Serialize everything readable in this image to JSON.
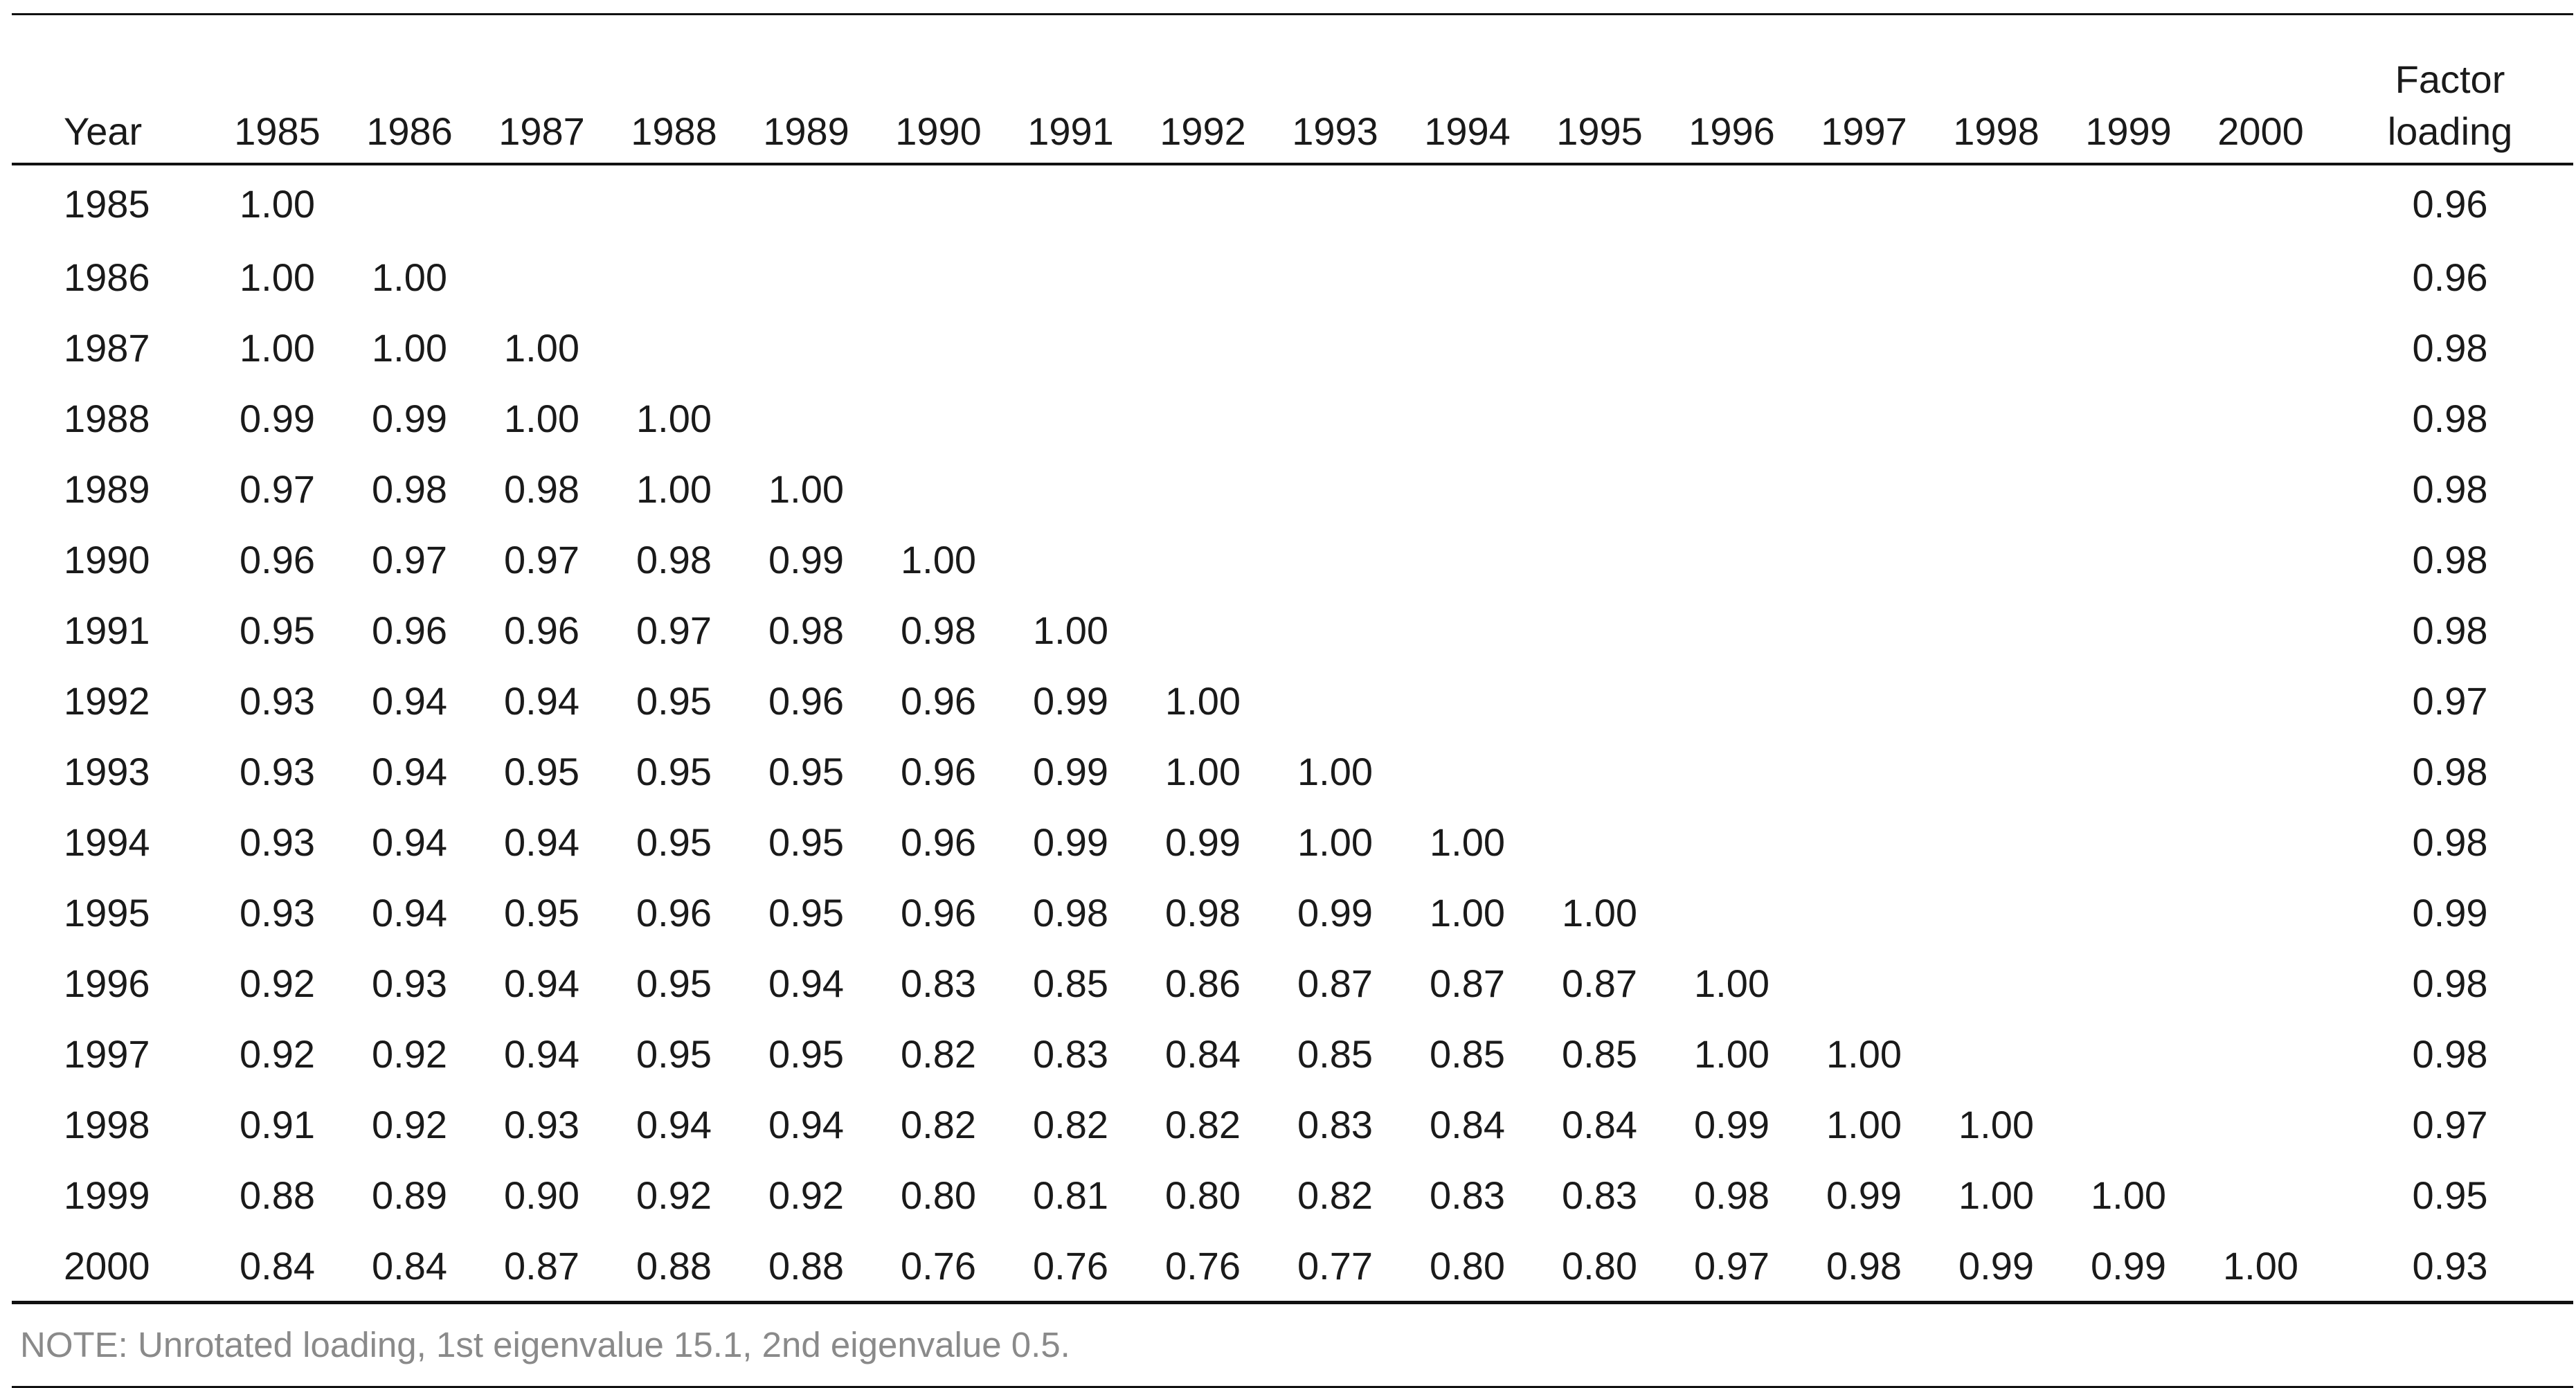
{
  "table": {
    "year_header": "Year",
    "loading_header_line1": "Factor",
    "loading_header_line2": "loading",
    "columns": [
      "1985",
      "1986",
      "1987",
      "1988",
      "1989",
      "1990",
      "1991",
      "1992",
      "1993",
      "1994",
      "1995",
      "1996",
      "1997",
      "1998",
      "1999",
      "2000"
    ],
    "rows": [
      {
        "year": "1985",
        "values": [
          "1.00"
        ],
        "loading": "0.96"
      },
      {
        "year": "1986",
        "values": [
          "1.00",
          "1.00"
        ],
        "loading": "0.96"
      },
      {
        "year": "1987",
        "values": [
          "1.00",
          "1.00",
          "1.00"
        ],
        "loading": "0.98"
      },
      {
        "year": "1988",
        "values": [
          "0.99",
          "0.99",
          "1.00",
          "1.00"
        ],
        "loading": "0.98"
      },
      {
        "year": "1989",
        "values": [
          "0.97",
          "0.98",
          "0.98",
          "1.00",
          "1.00"
        ],
        "loading": "0.98"
      },
      {
        "year": "1990",
        "values": [
          "0.96",
          "0.97",
          "0.97",
          "0.98",
          "0.99",
          "1.00"
        ],
        "loading": "0.98"
      },
      {
        "year": "1991",
        "values": [
          "0.95",
          "0.96",
          "0.96",
          "0.97",
          "0.98",
          "0.98",
          "1.00"
        ],
        "loading": "0.98"
      },
      {
        "year": "1992",
        "values": [
          "0.93",
          "0.94",
          "0.94",
          "0.95",
          "0.96",
          "0.96",
          "0.99",
          "1.00"
        ],
        "loading": "0.97"
      },
      {
        "year": "1993",
        "values": [
          "0.93",
          "0.94",
          "0.95",
          "0.95",
          "0.95",
          "0.96",
          "0.99",
          "1.00",
          "1.00"
        ],
        "loading": "0.98"
      },
      {
        "year": "1994",
        "values": [
          "0.93",
          "0.94",
          "0.94",
          "0.95",
          "0.95",
          "0.96",
          "0.99",
          "0.99",
          "1.00",
          "1.00"
        ],
        "loading": "0.98"
      },
      {
        "year": "1995",
        "values": [
          "0.93",
          "0.94",
          "0.95",
          "0.96",
          "0.95",
          "0.96",
          "0.98",
          "0.98",
          "0.99",
          "1.00",
          "1.00"
        ],
        "loading": "0.99"
      },
      {
        "year": "1996",
        "values": [
          "0.92",
          "0.93",
          "0.94",
          "0.95",
          "0.94",
          "0.83",
          "0.85",
          "0.86",
          "0.87",
          "0.87",
          "0.87",
          "1.00"
        ],
        "loading": "0.98"
      },
      {
        "year": "1997",
        "values": [
          "0.92",
          "0.92",
          "0.94",
          "0.95",
          "0.95",
          "0.82",
          "0.83",
          "0.84",
          "0.85",
          "0.85",
          "0.85",
          "1.00",
          "1.00"
        ],
        "loading": "0.98"
      },
      {
        "year": "1998",
        "values": [
          "0.91",
          "0.92",
          "0.93",
          "0.94",
          "0.94",
          "0.82",
          "0.82",
          "0.82",
          "0.83",
          "0.84",
          "0.84",
          "0.99",
          "1.00",
          "1.00"
        ],
        "loading": "0.97"
      },
      {
        "year": "1999",
        "values": [
          "0.88",
          "0.89",
          "0.90",
          "0.92",
          "0.92",
          "0.80",
          "0.81",
          "0.80",
          "0.82",
          "0.83",
          "0.83",
          "0.98",
          "0.99",
          "1.00",
          "1.00"
        ],
        "loading": "0.95"
      },
      {
        "year": "2000",
        "values": [
          "0.84",
          "0.84",
          "0.87",
          "0.88",
          "0.88",
          "0.76",
          "0.76",
          "0.76",
          "0.77",
          "0.80",
          "0.80",
          "0.97",
          "0.98",
          "0.99",
          "0.99",
          "1.00"
        ],
        "loading": "0.93"
      }
    ],
    "note": "NOTE: Unrotated loading, 1st eigenvalue 15.1, 2nd eigenvalue 0.5."
  }
}
